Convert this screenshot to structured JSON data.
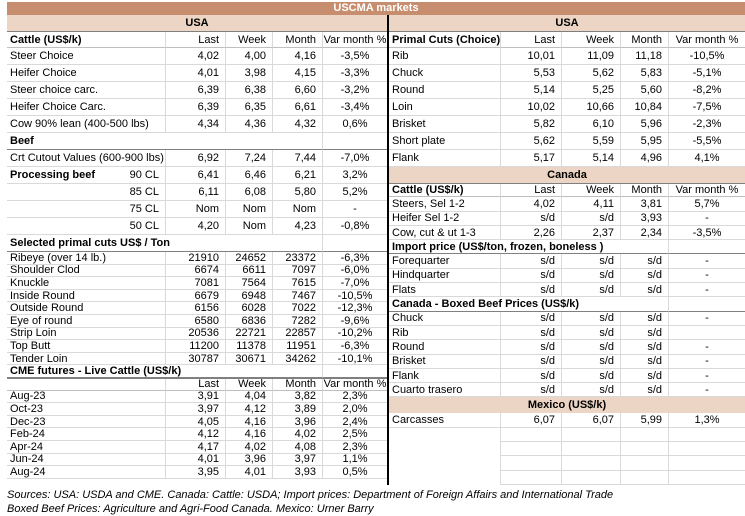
{
  "title": "USCMA markets",
  "colors": {
    "band_dark": "#c68e6e",
    "band_light": "#ecd5c4",
    "grid": "#d9d9d9",
    "separator": "#000000"
  },
  "sources": [
    "Sources: USA: USDA and CME. Canada: Cattle: USDA; Import prices: Department of Foreign Affairs and International Trade",
    "Boxed Beef Prices: Agriculture and Agri-Food Canada. Mexico: Urner Barry"
  ],
  "left": {
    "region": "USA",
    "rows": [
      {
        "t": "head",
        "label": "Cattle (US$/k)",
        "cols": [
          "Last",
          "Week",
          "Month",
          "Var month %"
        ]
      },
      {
        "t": "row",
        "label": "Steer Choice",
        "v": [
          "4,02",
          "4,00",
          "4,16",
          "-3,5%"
        ]
      },
      {
        "t": "row",
        "label": "Heifer Choice",
        "v": [
          "4,01",
          "3,98",
          "4,15",
          "-3,3%"
        ]
      },
      {
        "t": "row",
        "label": "Steer choice carc.",
        "v": [
          "6,39",
          "6,38",
          "6,60",
          "-3,2%"
        ]
      },
      {
        "t": "row",
        "label": "Heifer Choice Carc.",
        "v": [
          "6,39",
          "6,35",
          "6,61",
          "-3,4%"
        ]
      },
      {
        "t": "row",
        "label": "Cow 90% lean (400-500 lbs)",
        "v": [
          "4,34",
          "4,36",
          "4,32",
          "0,6%"
        ]
      },
      {
        "t": "sec",
        "label": "Beef"
      },
      {
        "t": "row",
        "label": "Crt Cutout Values (600-900 lbs)",
        "v": [
          "6,92",
          "7,24",
          "7,44",
          "-7,0%"
        ]
      },
      {
        "t": "row",
        "label": "Processing beef",
        "sub": "90 CL",
        "boldLabel": true,
        "v": [
          "6,41",
          "6,46",
          "6,21",
          "3,2%"
        ]
      },
      {
        "t": "row",
        "label": "",
        "sub": "85 CL",
        "v": [
          "6,11",
          "6,08",
          "5,80",
          "5,2%"
        ]
      },
      {
        "t": "row",
        "label": "",
        "sub": "75 CL",
        "v": [
          "Nom",
          "Nom",
          "Nom",
          "-"
        ]
      },
      {
        "t": "row",
        "label": "",
        "sub": "50 CL",
        "v": [
          "4,20",
          "Nom",
          "4,23",
          "-0,8%"
        ]
      },
      {
        "t": "sec",
        "label": "Selected primal cuts US$ / Ton"
      },
      {
        "t": "row",
        "label": "Ribeye (over 14 lb.)",
        "v": [
          "21910",
          "24652",
          "23372",
          "-6,3%"
        ]
      },
      {
        "t": "row",
        "label": "Shoulder Clod",
        "v": [
          "6674",
          "6611",
          "7097",
          "-6,0%"
        ]
      },
      {
        "t": "row",
        "label": "Knuckle",
        "v": [
          "7081",
          "7564",
          "7615",
          "-7,0%"
        ]
      },
      {
        "t": "row",
        "label": "Inside Round",
        "v": [
          "6679",
          "6948",
          "7467",
          "-10,5%"
        ]
      },
      {
        "t": "row",
        "label": "Outside Round",
        "v": [
          "6156",
          "6028",
          "7022",
          "-12,3%"
        ]
      },
      {
        "t": "row",
        "label": "Eye of round",
        "v": [
          "6580",
          "6836",
          "7282",
          "-9,6%"
        ]
      },
      {
        "t": "row",
        "label": "Strip Loin",
        "v": [
          "20536",
          "22721",
          "22857",
          "-10,2%"
        ]
      },
      {
        "t": "row",
        "label": "Top Butt",
        "v": [
          "11200",
          "11378",
          "11951",
          "-6,3%"
        ]
      },
      {
        "t": "row",
        "label": "Tender Loin",
        "v": [
          "30787",
          "30671",
          "34262",
          "-10,1%"
        ]
      },
      {
        "t": "sec",
        "label": "CME futures - Live Cattle (US$/k)"
      },
      {
        "t": "head",
        "label": "",
        "cols": [
          "Last",
          "Week",
          "Month",
          "Var month %"
        ]
      },
      {
        "t": "row",
        "label": "Aug-23",
        "v": [
          "3,91",
          "4,04",
          "3,82",
          "2,3%"
        ]
      },
      {
        "t": "row",
        "label": "Oct-23",
        "v": [
          "3,97",
          "4,12",
          "3,89",
          "2,0%"
        ]
      },
      {
        "t": "row",
        "label": "Dec-23",
        "v": [
          "4,05",
          "4,16",
          "3,96",
          "2,4%"
        ]
      },
      {
        "t": "row",
        "label": "Feb-24",
        "v": [
          "4,12",
          "4,16",
          "4,02",
          "2,5%"
        ]
      },
      {
        "t": "row",
        "label": "Apr-24",
        "v": [
          "4,17",
          "4,02",
          "4,08",
          "2,3%"
        ]
      },
      {
        "t": "row",
        "label": "Jun-24",
        "v": [
          "4,01",
          "3,96",
          "3,97",
          "1,1%"
        ]
      },
      {
        "t": "row",
        "label": "Aug-24",
        "v": [
          "3,95",
          "4,01",
          "3,93",
          "0,5%"
        ]
      }
    ]
  },
  "right": {
    "region": "USA",
    "rows": [
      {
        "t": "head",
        "label": "Primal Cuts (Choice)",
        "cols": [
          "Last",
          "Week",
          "Month",
          "Var month %"
        ]
      },
      {
        "t": "row",
        "label": "Rib",
        "v": [
          "10,01",
          "11,09",
          "11,18",
          "-10,5%"
        ]
      },
      {
        "t": "row",
        "label": "Chuck",
        "v": [
          "5,53",
          "5,62",
          "5,83",
          "-5,1%"
        ]
      },
      {
        "t": "row",
        "label": "Round",
        "v": [
          "5,14",
          "5,25",
          "5,60",
          "-8,2%"
        ]
      },
      {
        "t": "row",
        "label": "Loin",
        "v": [
          "10,02",
          "10,66",
          "10,84",
          "-7,5%"
        ]
      },
      {
        "t": "row",
        "label": "Brisket",
        "v": [
          "5,82",
          "6,10",
          "5,96",
          "-2,3%"
        ]
      },
      {
        "t": "row",
        "label": "Short plate",
        "v": [
          "5,62",
          "5,59",
          "5,95",
          "-5,5%"
        ]
      },
      {
        "t": "row",
        "label": "Flank",
        "v": [
          "5,17",
          "5,14",
          "4,96",
          "4,1%"
        ]
      },
      {
        "t": "band",
        "label": "Canada"
      },
      {
        "t": "head",
        "label": "Cattle (US$/k)",
        "cols": [
          "Last",
          "Week",
          "Month",
          "Var month %"
        ]
      },
      {
        "t": "row",
        "label": "Steers, Sel 1-2",
        "v": [
          "4,02",
          "4,11",
          "3,81",
          "5,7%"
        ]
      },
      {
        "t": "row",
        "label": "Heifer Sel 1-2",
        "v": [
          "s/d",
          "s/d",
          "3,93",
          "-"
        ]
      },
      {
        "t": "row",
        "label": "Cow, cut & ut 1-3",
        "v": [
          "2,26",
          "2,37",
          "2,34",
          "-3,5%"
        ]
      },
      {
        "t": "sec",
        "label": "Import price (US$/ton, frozen, boneless )"
      },
      {
        "t": "row",
        "label": "Forequarter",
        "v": [
          "s/d",
          "s/d",
          "s/d",
          "-"
        ]
      },
      {
        "t": "row",
        "label": "Hindquarter",
        "v": [
          "s/d",
          "s/d",
          "s/d",
          "-"
        ]
      },
      {
        "t": "row",
        "label": "Flats",
        "v": [
          "s/d",
          "s/d",
          "s/d",
          "-"
        ]
      },
      {
        "t": "sec",
        "label": "Canada - Boxed Beef Prices (US$/k)"
      },
      {
        "t": "row",
        "label": "Chuck",
        "v": [
          "s/d",
          "s/d",
          "s/d",
          "-"
        ]
      },
      {
        "t": "row",
        "label": "Rib",
        "v": [
          "s/d",
          "s/d",
          "s/d",
          ""
        ]
      },
      {
        "t": "row",
        "label": "Round",
        "v": [
          "s/d",
          "s/d",
          "s/d",
          "-"
        ]
      },
      {
        "t": "row",
        "label": "Brisket",
        "v": [
          "s/d",
          "s/d",
          "s/d",
          "-"
        ]
      },
      {
        "t": "row",
        "label": "Flank",
        "v": [
          "s/d",
          "s/d",
          "s/d",
          "-"
        ]
      },
      {
        "t": "row",
        "label": "Cuarto trasero",
        "v": [
          "s/d",
          "s/d",
          "s/d",
          "-"
        ]
      },
      {
        "t": "band",
        "label": "Mexico (US$/k)"
      },
      {
        "t": "row",
        "label": "Carcasses",
        "v": [
          "6,07",
          "6,07",
          "5,99",
          "1,3%"
        ]
      },
      {
        "t": "empty"
      },
      {
        "t": "empty"
      },
      {
        "t": "empty"
      },
      {
        "t": "empty"
      }
    ]
  }
}
